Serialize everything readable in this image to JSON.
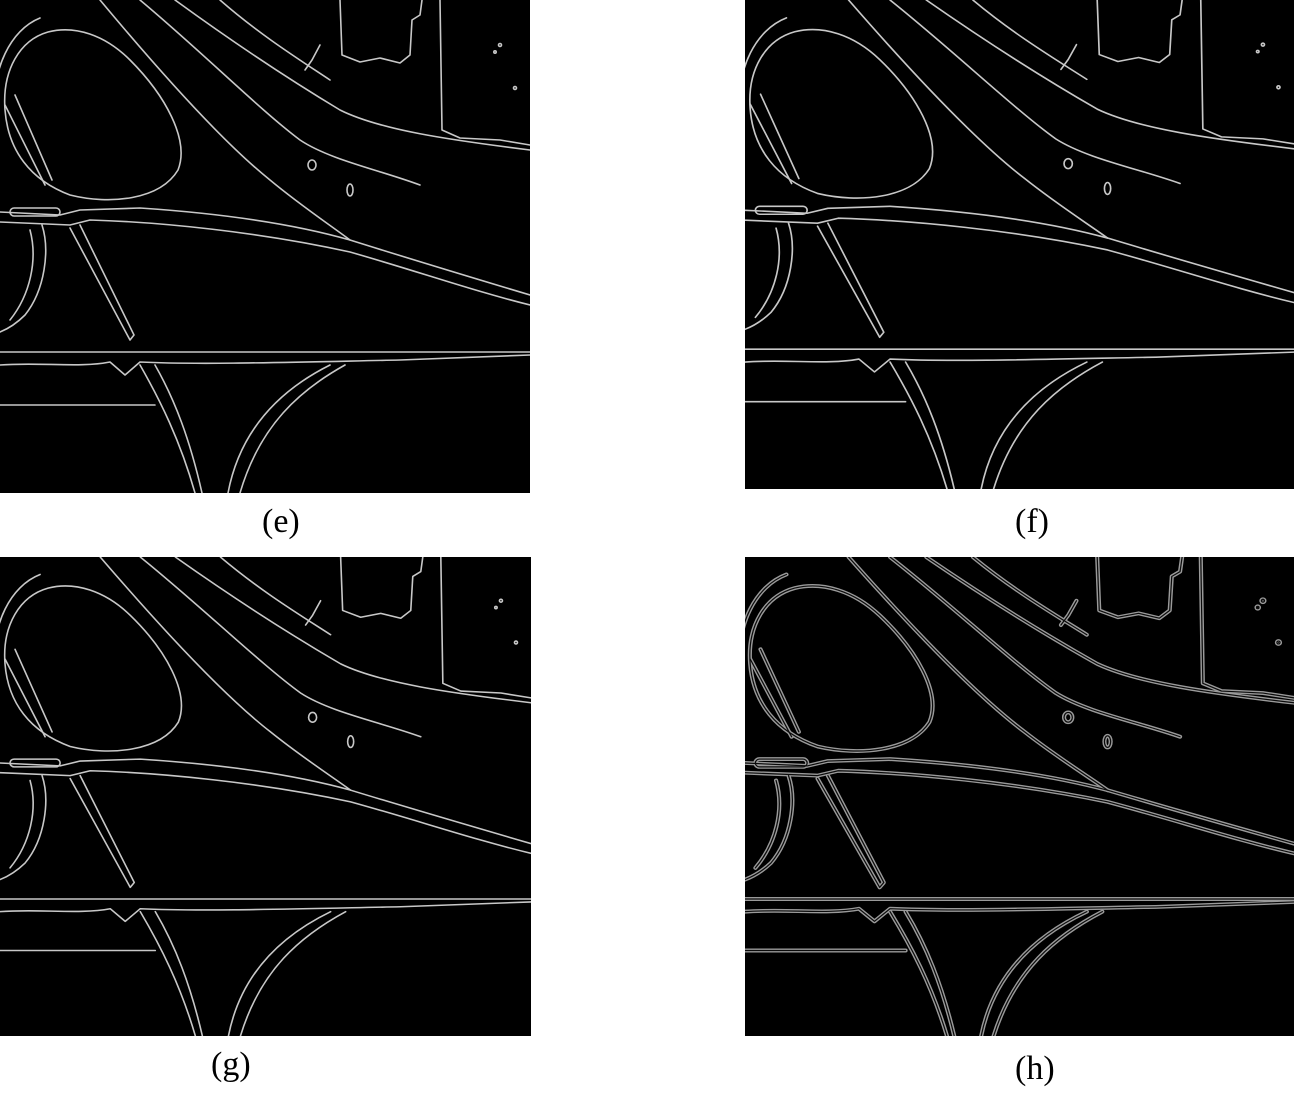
{
  "panels": [
    {
      "id": "e",
      "caption": "(e)"
    },
    {
      "id": "f",
      "caption": "(f)"
    },
    {
      "id": "g",
      "caption": "(g)"
    },
    {
      "id": "h",
      "caption": "(h)"
    }
  ]
}
